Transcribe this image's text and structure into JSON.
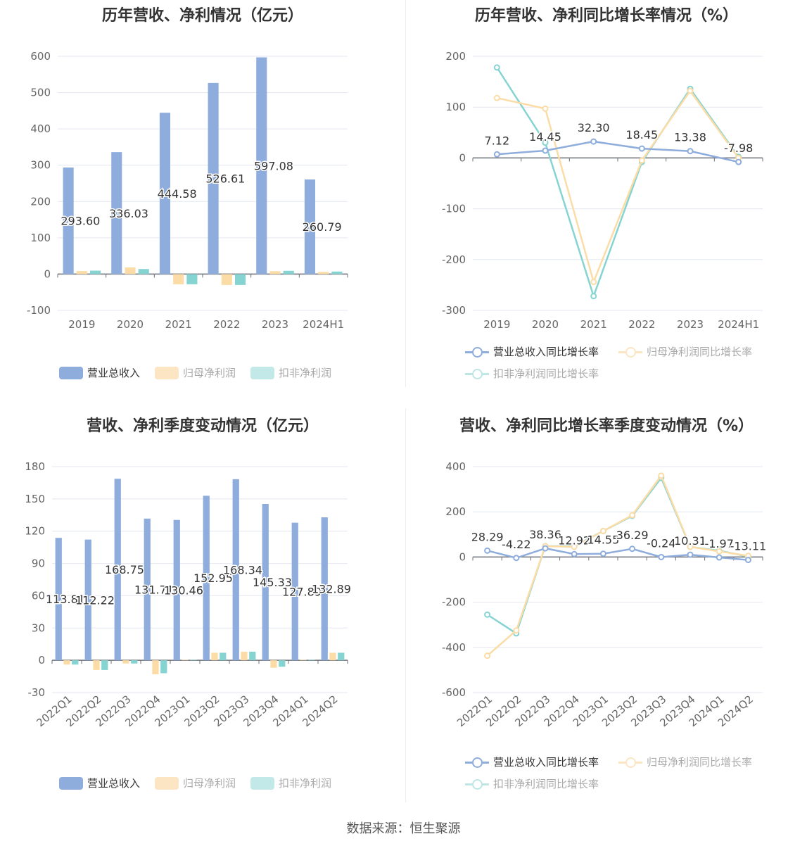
{
  "source_text": "数据来源：恒生聚源",
  "colors": {
    "revenue": "#8eaddc",
    "net_profit": "#fcdca6",
    "deducted_profit": "#86d4d2",
    "revenue_line": "#8eaddc",
    "net_line": "#fcdca6",
    "deducted_line": "#86d4d2"
  },
  "chart_data": [
    {
      "id": "annual-amounts",
      "type": "bar",
      "title": "历年营收、净利情况（亿元）",
      "categories": [
        "2019",
        "2020",
        "2021",
        "2022",
        "2023",
        "2024H1"
      ],
      "ylim": [
        -100,
        600
      ],
      "yticks": [
        -100,
        0,
        100,
        200,
        300,
        400,
        500,
        600
      ],
      "grid": true,
      "legend_position": "bottom",
      "series": [
        {
          "name": "营业总收入",
          "values": [
            293.6,
            336.03,
            444.58,
            526.61,
            597.08,
            260.79
          ],
          "labels": [
            "293.60",
            "336.03",
            "444.58",
            "526.61",
            "597.08",
            "260.79"
          ]
        },
        {
          "name": "归母净利润",
          "values": [
            8.5,
            18.5,
            -28.0,
            -30.0,
            8.0,
            6.0
          ]
        },
        {
          "name": "扣非净利润",
          "values": [
            9.5,
            14.0,
            -28.0,
            -30.0,
            9.0,
            7.0
          ]
        }
      ]
    },
    {
      "id": "annual-growth",
      "type": "line",
      "title": "历年营收、净利同比增长率情况（%）",
      "categories": [
        "2019",
        "2020",
        "2021",
        "2022",
        "2023",
        "2024H1"
      ],
      "ylim": [
        -300,
        200
      ],
      "yticks": [
        -300,
        -200,
        -100,
        0,
        100,
        200
      ],
      "grid": true,
      "legend_position": "bottom",
      "series": [
        {
          "name": "营业总收入同比增长率",
          "values": [
            7.12,
            14.45,
            32.3,
            18.45,
            13.38,
            -7.98
          ],
          "labels": [
            "7.12",
            "14.45",
            "32.30",
            "18.45",
            "13.38",
            "-7.98"
          ]
        },
        {
          "name": "归母净利润同比增长率",
          "values": [
            118,
            97,
            -244,
            -5,
            132,
            0
          ]
        },
        {
          "name": "扣非净利润同比增长率",
          "values": [
            178,
            30,
            -272,
            -8,
            136,
            2
          ]
        }
      ]
    },
    {
      "id": "quarterly-amounts",
      "type": "bar",
      "title": "营收、净利季度变动情况（亿元）",
      "categories": [
        "2022Q1",
        "2022Q2",
        "2022Q3",
        "2022Q4",
        "2023Q1",
        "2023Q2",
        "2023Q3",
        "2023Q4",
        "2024Q1",
        "2024Q2"
      ],
      "ylim": [
        -30,
        180
      ],
      "yticks": [
        -30,
        0,
        30,
        60,
        90,
        120,
        150,
        180
      ],
      "grid": true,
      "legend_position": "bottom",
      "series": [
        {
          "name": "营业总收入",
          "values": [
            113.81,
            112.22,
            168.75,
            131.71,
            130.46,
            152.95,
            168.34,
            145.33,
            127.89,
            132.89
          ],
          "labels": [
            "113.81",
            "112.22",
            "168.75",
            "131.71",
            "130.46",
            "152.95",
            "168.34",
            "145.33",
            "127.89",
            "132.89"
          ]
        },
        {
          "name": "归母净利润",
          "values": [
            -4,
            -9,
            -3,
            -13,
            0.5,
            7,
            8,
            -7,
            0.5,
            7
          ]
        },
        {
          "name": "扣非净利润",
          "values": [
            -4,
            -9,
            -3,
            -12,
            0.5,
            7,
            8,
            -6,
            0.5,
            7
          ]
        }
      ]
    },
    {
      "id": "quarterly-growth",
      "type": "line",
      "title": "营收、净利同比增长率季度变动情况（%）",
      "categories": [
        "2022Q1",
        "2022Q2",
        "2022Q3",
        "2022Q4",
        "2023Q1",
        "2023Q2",
        "2023Q3",
        "2023Q4",
        "2024Q1",
        "2024Q2"
      ],
      "ylim": [
        -600,
        400
      ],
      "yticks": [
        -600,
        -400,
        -200,
        0,
        200,
        400
      ],
      "grid": true,
      "legend_position": "bottom",
      "series": [
        {
          "name": "营业总收入同比增长率",
          "values": [
            28.29,
            -4.22,
            38.36,
            12.92,
            14.55,
            36.29,
            -0.24,
            10.31,
            -1.97,
            -13.11
          ],
          "labels": [
            "28.29",
            "-4.22",
            "38.36",
            "12.92",
            "14.55",
            "36.29",
            "-0.24",
            "10.31",
            "-1.97",
            "-13.11"
          ]
        },
        {
          "name": "归母净利润同比增长率",
          "values": [
            -437,
            -325,
            48,
            45,
            115,
            185,
            360,
            45,
            25,
            5
          ]
        },
        {
          "name": "扣非净利润同比增长率",
          "values": [
            -255,
            -338,
            48,
            48,
            115,
            182,
            350,
            45,
            28,
            2
          ]
        }
      ]
    }
  ]
}
